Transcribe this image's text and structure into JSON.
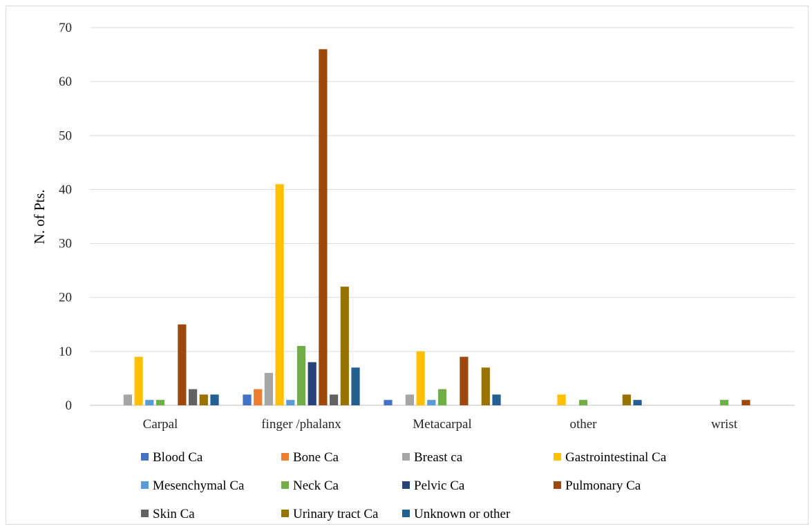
{
  "chart_data": {
    "type": "bar",
    "title": "",
    "xlabel": "",
    "ylabel": "N. of Pts.",
    "ylim": [
      0,
      70
    ],
    "yticks": [
      0,
      10,
      20,
      30,
      40,
      50,
      60,
      70
    ],
    "grid": true,
    "legend_position": "bottom",
    "categories": [
      "Carpal",
      "finger /phalanx",
      "Metacarpal",
      "other",
      "wrist"
    ],
    "series": [
      {
        "name": "Blood Ca",
        "color": "#4472c4",
        "values": [
          0,
          2,
          1,
          0,
          0
        ]
      },
      {
        "name": "Bone Ca",
        "color": "#ed7d31",
        "values": [
          0,
          3,
          0,
          0,
          0
        ]
      },
      {
        "name": "Breast ca",
        "color": "#a5a5a5",
        "values": [
          2,
          6,
          2,
          0,
          0
        ]
      },
      {
        "name": "Gastrointestinal Ca",
        "color": "#ffc000",
        "values": [
          9,
          41,
          10,
          2,
          0
        ]
      },
      {
        "name": "Mesenchymal Ca",
        "color": "#5b9bd5",
        "values": [
          1,
          1,
          1,
          0,
          0
        ]
      },
      {
        "name": "Neck Ca",
        "color": "#70ad47",
        "values": [
          1,
          11,
          3,
          1,
          1
        ]
      },
      {
        "name": "Pelvic Ca",
        "color": "#264478",
        "values": [
          0,
          8,
          0,
          0,
          0
        ]
      },
      {
        "name": "Pulmonary Ca",
        "color": "#9e480e",
        "values": [
          15,
          66,
          9,
          0,
          1
        ]
      },
      {
        "name": "Skin Ca",
        "color": "#636363",
        "values": [
          3,
          2,
          0,
          0,
          0
        ]
      },
      {
        "name": "Urinary tract Ca",
        "color": "#997300",
        "values": [
          2,
          22,
          7,
          2,
          0
        ]
      },
      {
        "name": "Unknown or other",
        "color": "#255e91",
        "values": [
          2,
          7,
          2,
          1,
          0
        ]
      }
    ]
  }
}
